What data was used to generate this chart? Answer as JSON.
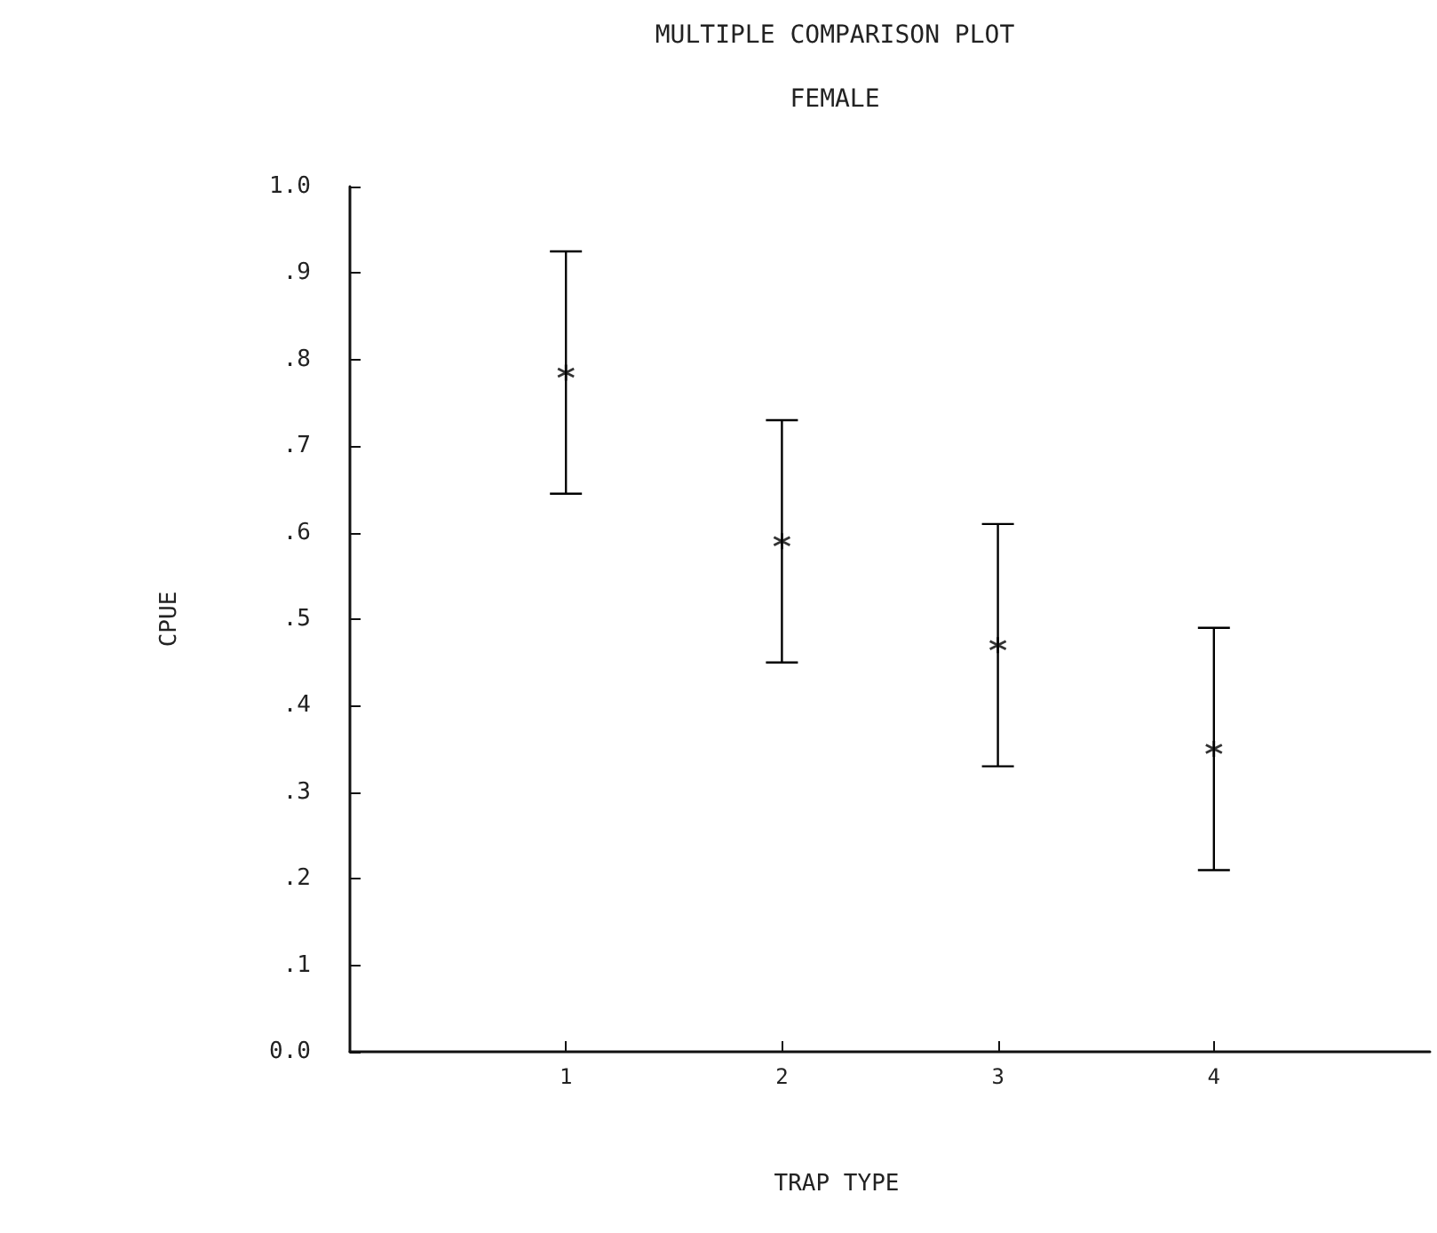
{
  "chart_data": {
    "type": "scatter",
    "title": "MULTIPLE COMPARISON PLOT",
    "subtitle": "FEMALE",
    "xlabel": "TRAP TYPE",
    "ylabel": "CPUE",
    "x": [
      1,
      2,
      3,
      4
    ],
    "series": [
      {
        "color": "#000000",
        "values": [
          0.785,
          0.59,
          0.47,
          0.35
        ],
        "errors": [
          0.14,
          0.14,
          0.14,
          0.14
        ]
      }
    ],
    "xlim": [
      0,
      5
    ],
    "xticks": [
      1,
      2,
      3,
      4
    ],
    "ylim": [
      0,
      1
    ],
    "yticks": [
      {
        "value": 0,
        "label": "0.0"
      },
      {
        "value": 0.1,
        "label": ".1"
      },
      {
        "value": 0.2,
        "label": ".2"
      },
      {
        "value": 0.3,
        "label": ".3"
      },
      {
        "value": 0.4,
        "label": ".4"
      },
      {
        "value": 0.5,
        "label": ".5"
      },
      {
        "value": 0.6,
        "label": ".6"
      },
      {
        "value": 0.7,
        "label": ".7"
      },
      {
        "value": 0.8,
        "label": ".8"
      },
      {
        "value": 0.9,
        "label": ".9"
      },
      {
        "value": 1,
        "label": "1.0"
      }
    ],
    "grid": false,
    "marker": "cross"
  }
}
